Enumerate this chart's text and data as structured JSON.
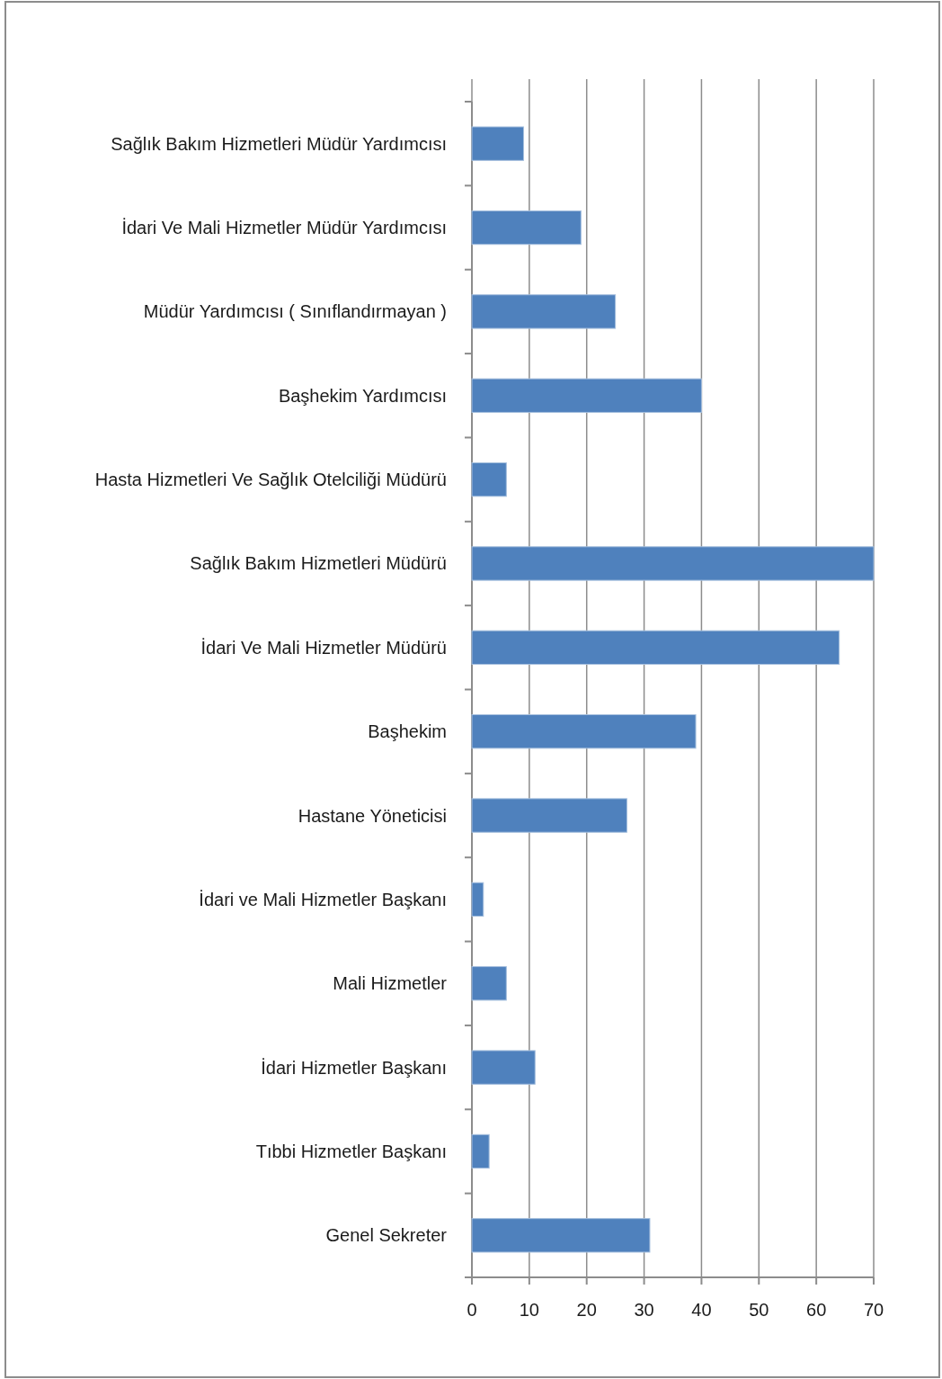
{
  "chart_data": {
    "type": "bar",
    "orientation": "horizontal",
    "categories": [
      "Sağlık Bakım Hizmetleri Müdür Yardımcısı",
      "İdari Ve Mali Hizmetler Müdür Yardımcısı",
      "Müdür Yardımcısı ( Sınıflandırmayan )",
      "Başhekim Yardımcısı",
      "Hasta Hizmetleri Ve Sağlık Otelciliği Müdürü",
      "Sağlık Bakım Hizmetleri Müdürü",
      "İdari Ve Mali Hizmetler Müdürü",
      "Başhekim",
      "Hastane Yöneticisi",
      "İdari ve Mali Hizmetler Başkanı",
      "Mali Hizmetler",
      "İdari Hizmetler Başkanı",
      "Tıbbi Hizmetler Başkanı",
      "Genel Sekreter"
    ],
    "values": [
      9,
      19,
      25,
      40,
      6,
      70,
      64,
      39,
      27,
      2,
      6,
      11,
      3,
      31
    ],
    "color": "#4f81bd",
    "xlim": [
      0,
      70
    ],
    "xticks": [
      0,
      10,
      20,
      30,
      40,
      50,
      60,
      70
    ],
    "grid": "x"
  }
}
